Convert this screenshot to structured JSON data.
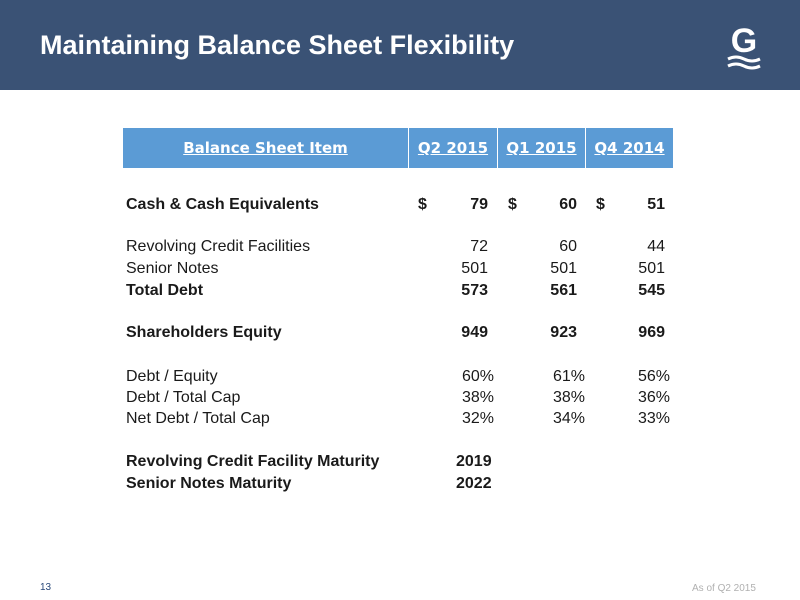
{
  "header": {
    "title": "Maintaining Balance Sheet Flexibility",
    "bg_color": "#3a5275"
  },
  "logo": {
    "icon": "g-logo-icon",
    "letter": "G"
  },
  "table": {
    "headers": [
      "Balance Sheet Item",
      "Q2 2015",
      "Q1 2015",
      "Q4 2014"
    ],
    "header_color": "#5b9bd5",
    "rows": [
      {
        "label": "Cash & Cash Equivalents",
        "bold": true,
        "currency": "$",
        "values": [
          "79",
          "60",
          "51"
        ]
      },
      {
        "label": "Revolving Credit Facilities",
        "bold": false,
        "values": [
          "72",
          "60",
          "44"
        ]
      },
      {
        "label": "Senior Notes",
        "bold": false,
        "values": [
          "501",
          "501",
          "501"
        ]
      },
      {
        "label": "Total Debt",
        "bold": true,
        "values": [
          "573",
          "561",
          "545"
        ]
      },
      {
        "label": "Shareholders Equity",
        "bold": true,
        "values": [
          "949",
          "923",
          "969"
        ]
      },
      {
        "label": "Debt / Equity",
        "bold": false,
        "values": [
          "60%",
          "61%",
          "56%"
        ]
      },
      {
        "label": "Debt / Total Cap",
        "bold": false,
        "values": [
          "38%",
          "38%",
          "36%"
        ]
      },
      {
        "label": "Net Debt / Total Cap",
        "bold": false,
        "values": [
          "32%",
          "34%",
          "33%"
        ]
      },
      {
        "label": "Revolving Credit Facility Maturity",
        "bold": true,
        "values": [
          "2019"
        ]
      },
      {
        "label": "Senior Notes Maturity",
        "bold": true,
        "values": [
          "2022"
        ]
      }
    ]
  },
  "footer": {
    "page_number": "13",
    "as_of": "As of Q2 2015"
  }
}
